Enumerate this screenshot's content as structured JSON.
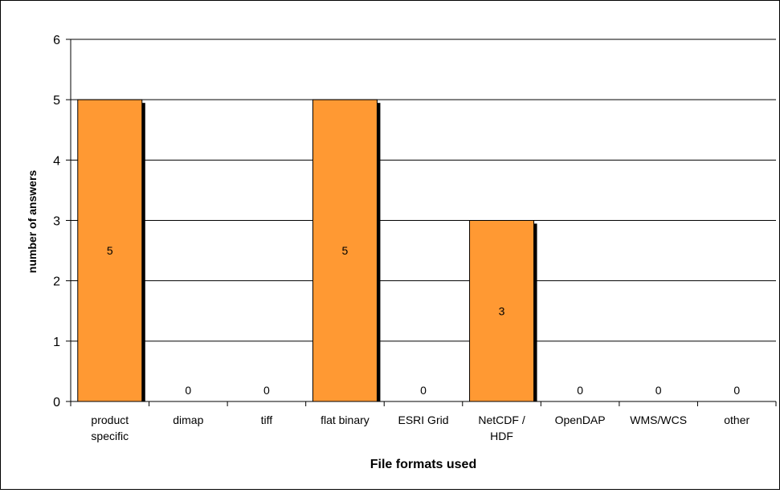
{
  "chart_data": {
    "type": "bar",
    "title": "",
    "xlabel": "File formats used",
    "ylabel": "number of answers",
    "categories": [
      "product specific",
      "dimap",
      "tiff",
      "flat binary",
      "ESRI Grid",
      "NetCDF / HDF",
      "OpenDAP",
      "WMS/WCS",
      "other"
    ],
    "category_lines": [
      [
        "product",
        "specific"
      ],
      [
        "dimap"
      ],
      [
        "tiff"
      ],
      [
        "flat binary"
      ],
      [
        "ESRI Grid"
      ],
      [
        "NetCDF /",
        "HDF"
      ],
      [
        "OpenDAP"
      ],
      [
        "WMS/WCS"
      ],
      [
        "other"
      ]
    ],
    "values": [
      5,
      0,
      0,
      5,
      0,
      3,
      0,
      0,
      0
    ],
    "data_labels": [
      "5",
      "0",
      "0",
      "5",
      "0",
      "3",
      "0",
      "0",
      "0"
    ],
    "ylim": [
      0,
      6
    ],
    "yticks": [
      "0",
      "1",
      "2",
      "3",
      "4",
      "5",
      "6"
    ],
    "grid": true,
    "legend": "none",
    "bar_color": "#FF9933",
    "bar_shadow_color": "#000000"
  }
}
